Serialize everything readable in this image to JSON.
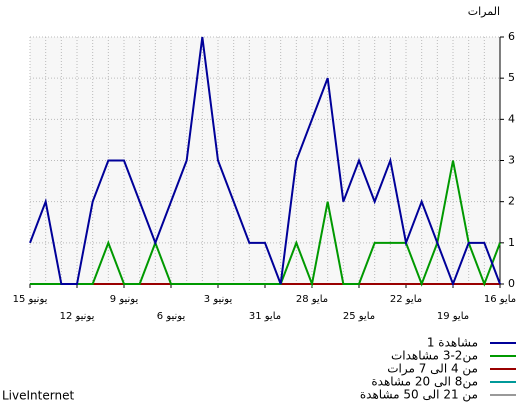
{
  "chart_data": {
    "type": "line",
    "title": "المرات",
    "categories": [
      "16 مايو",
      null,
      null,
      "19 مايو",
      null,
      null,
      "22 مايو",
      null,
      null,
      "25 مايو",
      null,
      null,
      "28 مايو",
      null,
      null,
      "31 مايو",
      null,
      null,
      "3 يونيو",
      null,
      null,
      "6 يونيو",
      null,
      null,
      "9 يونيو",
      null,
      null,
      "12 يونيو",
      null,
      null,
      "15 يونيو"
    ],
    "series": [
      {
        "name": "1 مشاهدة",
        "color": "#000099",
        "values": [
          0,
          1,
          1,
          0,
          1,
          2,
          1,
          3,
          2,
          3,
          2,
          5,
          4,
          3,
          0,
          1,
          1,
          2,
          3,
          6,
          3,
          2,
          1,
          2,
          3,
          3,
          2,
          0,
          0,
          2,
          1
        ]
      },
      {
        "name": "من2-3  مشاهدات",
        "color": "#009900",
        "values": [
          1,
          0,
          1,
          3,
          1,
          0,
          1,
          1,
          1,
          0,
          0,
          2,
          0,
          1,
          0,
          0,
          0,
          0,
          0,
          0,
          0,
          0,
          1,
          0,
          0,
          1,
          0,
          0,
          0,
          0,
          0
        ]
      },
      {
        "name": "من 4 الى 7 مرات",
        "color": "#990000",
        "values": [
          0,
          0,
          0,
          0,
          0,
          0,
          0,
          0,
          0,
          0,
          0,
          0,
          0,
          0,
          0,
          0,
          0,
          0,
          0,
          0,
          0,
          0,
          0,
          0,
          0,
          0,
          0,
          0,
          0,
          0,
          0
        ]
      },
      {
        "name": "من8 الى 20 مشاهدة",
        "color": "#009999",
        "values": [
          0,
          0,
          0,
          0,
          0,
          0,
          0,
          0,
          0,
          0,
          0,
          0,
          0,
          0,
          0,
          0,
          0,
          0,
          0,
          0,
          0,
          0,
          0,
          0,
          0,
          0,
          0,
          0,
          0,
          0,
          0
        ]
      },
      {
        "name": "من 21 الى 50 مشاهدة",
        "color": "#999999",
        "values": [
          0,
          0,
          0,
          0,
          0,
          0,
          0,
          0,
          0,
          0,
          0,
          0,
          0,
          0,
          0,
          0,
          0,
          0,
          0,
          0,
          0,
          0,
          0,
          0,
          0,
          0,
          0,
          0,
          0,
          0,
          0
        ]
      }
    ],
    "ylim": [
      0,
      6
    ],
    "yticks": [
      0,
      1,
      2,
      3,
      4,
      5,
      6
    ],
    "grid": true,
    "reverse_x": true,
    "legend": "bottom-right",
    "footer": "LiveInternet"
  }
}
